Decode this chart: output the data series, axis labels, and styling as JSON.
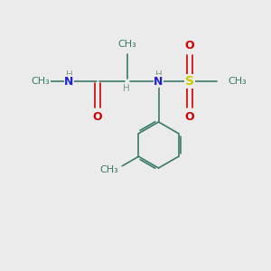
{
  "bg_color": "#ebebeb",
  "bond_color": "#3a7a6a",
  "N_color": "#2020cc",
  "O_color": "#cc0000",
  "S_color": "#cccc00",
  "H_color": "#7a9a8a",
  "bond_width": 1.2,
  "figsize": [
    3.0,
    3.0
  ],
  "dpi": 100,
  "xlim": [
    0,
    10
  ],
  "ylim": [
    0,
    10
  ]
}
